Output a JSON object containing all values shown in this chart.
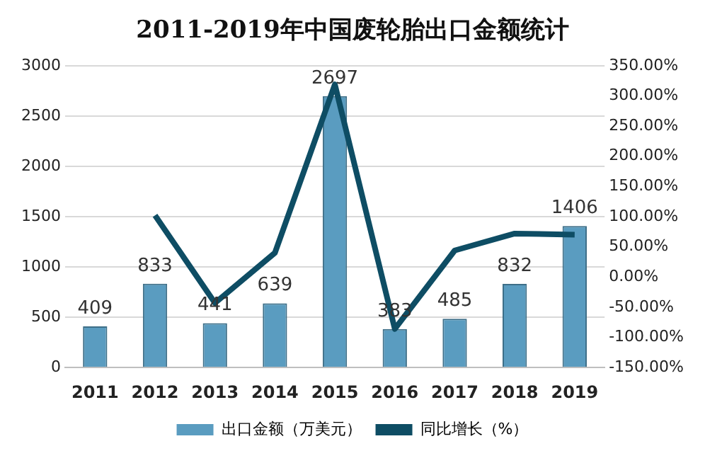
{
  "chart_data": {
    "type": "bar",
    "title": "2011-2019年中国废轮胎出口金额统计",
    "categories": [
      "2011",
      "2012",
      "2013",
      "2014",
      "2015",
      "2016",
      "2017",
      "2018",
      "2019"
    ],
    "series": [
      {
        "name": "出口金额（万美元）",
        "color": "#5a9cc0",
        "values": [
          409,
          833,
          441,
          639,
          2697,
          383,
          485,
          832,
          1406
        ],
        "value_labels": [
          "409",
          "833",
          "441",
          "639",
          "2697",
          "383",
          "485",
          "832",
          "1406"
        ]
      },
      {
        "name": "同比增长（%）",
        "type": "line",
        "axis": "y2",
        "color": "#0e4d64",
        "values": [
          null,
          102,
          -43,
          40,
          319,
          -86,
          44,
          72,
          70
        ]
      }
    ],
    "ylim": [
      0,
      3000
    ],
    "yticks": [
      0,
      500,
      1000,
      1500,
      2000,
      2500,
      3000
    ],
    "y2lim": [
      -150,
      350
    ],
    "y2ticks": [
      {
        "value": -150,
        "label": "-150.00%"
      },
      {
        "value": -100,
        "label": "-100.00%"
      },
      {
        "value": -50,
        "label": "-50.00%"
      },
      {
        "value": 0,
        "label": "0.00%"
      },
      {
        "value": 50,
        "label": "50.00%"
      },
      {
        "value": 100,
        "label": "100.00%"
      },
      {
        "value": 150,
        "label": "150.00%"
      },
      {
        "value": 200,
        "label": "200.00%"
      },
      {
        "value": 250,
        "label": "250.00%"
      },
      {
        "value": 300,
        "label": "300.00%"
      },
      {
        "value": 350,
        "label": "350.00%"
      }
    ],
    "grid": "y",
    "legend": "bottom",
    "marker": "none",
    "line_style": "solid"
  }
}
